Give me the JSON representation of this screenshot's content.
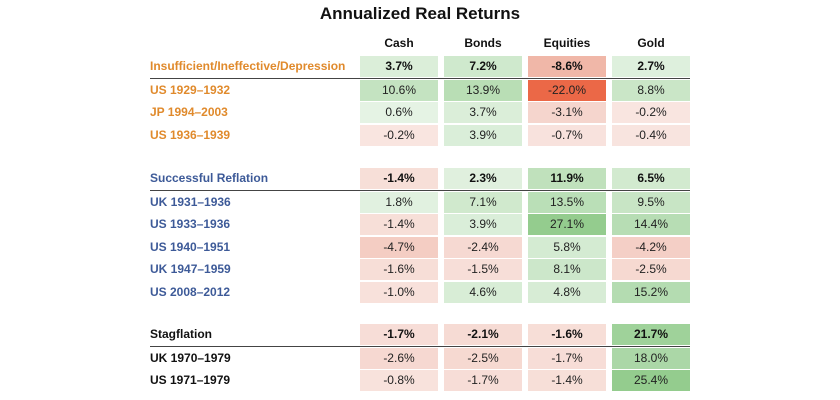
{
  "chart_data": {
    "type": "table",
    "title": "Annualized Real Returns",
    "columns": [
      "Cash",
      "Bonds",
      "Equities",
      "Gold"
    ],
    "groups": [
      {
        "name": "Insufficient/Ineffective/Depression",
        "color": "#e08a2c",
        "summary": [
          "3.7%",
          "7.2%",
          "-8.6%",
          "2.7%"
        ],
        "rows": [
          {
            "label": "US 1929–1932",
            "values": [
              "10.6%",
              "13.9%",
              "-22.0%",
              "8.8%"
            ]
          },
          {
            "label": "JP 1994–2003",
            "values": [
              "0.6%",
              "3.7%",
              "-3.1%",
              "-0.2%"
            ]
          },
          {
            "label": "US 1936–1939",
            "values": [
              "-0.2%",
              "3.9%",
              "-0.7%",
              "-0.4%"
            ]
          }
        ]
      },
      {
        "name": "Successful Reflation",
        "color": "#3d5a98",
        "summary": [
          "-1.4%",
          "2.3%",
          "11.9%",
          "6.5%"
        ],
        "rows": [
          {
            "label": "UK 1931–1936",
            "values": [
              "1.8%",
              "7.1%",
              "13.5%",
              "9.5%"
            ]
          },
          {
            "label": "US 1933–1936",
            "values": [
              "-1.4%",
              "3.9%",
              "27.1%",
              "14.4%"
            ]
          },
          {
            "label": "US 1940–1951",
            "values": [
              "-4.7%",
              "-2.4%",
              "5.8%",
              "-4.2%"
            ]
          },
          {
            "label": "UK 1947–1959",
            "values": [
              "-1.6%",
              "-1.5%",
              "8.1%",
              "-2.5%"
            ]
          },
          {
            "label": "US 2008–2012",
            "values": [
              "-1.0%",
              "4.6%",
              "4.8%",
              "15.2%"
            ]
          }
        ]
      },
      {
        "name": "Stagflation",
        "color": "#111111",
        "summary": [
          "-1.7%",
          "-2.1%",
          "-1.6%",
          "21.7%"
        ],
        "rows": [
          {
            "label": "UK 1970–1979",
            "values": [
              "-2.6%",
              "-2.5%",
              "-1.7%",
              "18.0%"
            ]
          },
          {
            "label": "US 1971–1979",
            "values": [
              "-0.8%",
              "-1.7%",
              "-1.4%",
              "25.4%"
            ]
          }
        ]
      }
    ]
  }
}
